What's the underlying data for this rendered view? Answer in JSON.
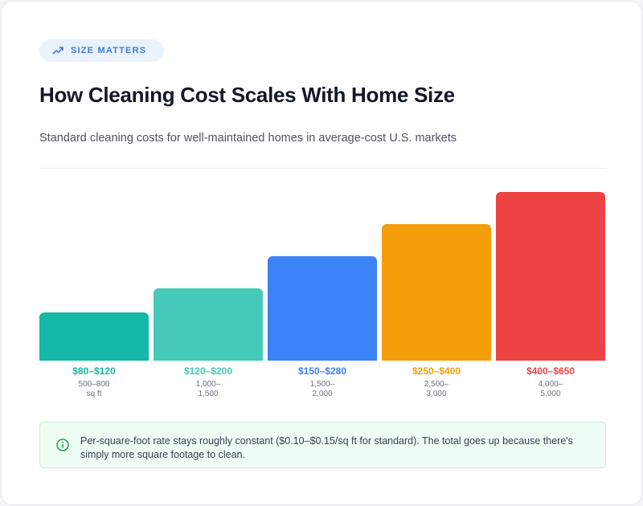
{
  "badge": "SIZE MATTERS",
  "title": "How Cleaning Cost Scales With Home Size",
  "subtitle": "Standard cleaning costs for well-maintained homes in average-cost U.S. markets",
  "bars": [
    {
      "price": "$80–$120",
      "size": "500–800 sq ft",
      "color": "#14b8a6"
    },
    {
      "price": "$120–$200",
      "size": "1,000–1,500",
      "color": "#45c9b8"
    },
    {
      "price": "$150–$280",
      "size": "1,500–2,000",
      "color": "#3b82f6"
    },
    {
      "price": "$250–$400",
      "size": "2,500–3,000",
      "color": "#f59e0b"
    },
    {
      "price": "$400–$650",
      "size": "4,000–5,000",
      "color": "#ef4444"
    }
  ],
  "note": "Per-square-foot rate stays roughly constant ($0.10–$0.15/sq ft for standard). The total goes up because there's simply more square footage to clean."
}
